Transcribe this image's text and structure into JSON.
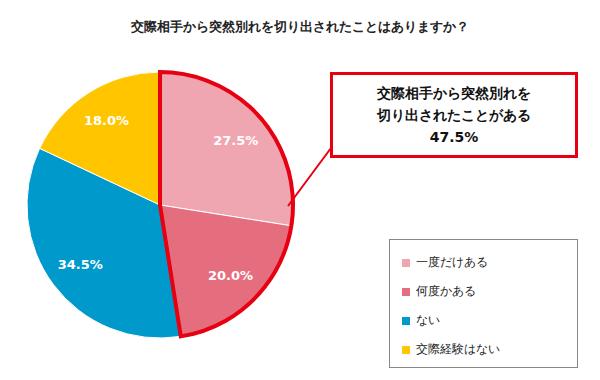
{
  "chart_data": {
    "type": "pie",
    "title": "交際相手から突然別れを切り出されたことはありますか？",
    "categories": [
      "一度だけある",
      "何度かある",
      "ない",
      "交際経験はない"
    ],
    "values": [
      27.5,
      20.0,
      34.5,
      18.0
    ],
    "value_labels": [
      "27.5%",
      "20.0%",
      "34.5%",
      "18.0%"
    ],
    "colors": [
      "#f0a6b0",
      "#e56e7e",
      "#0099cc",
      "#ffc600"
    ],
    "data_labels": true,
    "legend": "lower right",
    "annotation": {
      "text": [
        "交際相手から突然別れを",
        "切り出されたことがある"
      ],
      "value": 47.5,
      "label": "47.5%"
    }
  }
}
